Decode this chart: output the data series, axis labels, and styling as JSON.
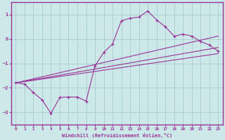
{
  "bg_color": "#cce8e8",
  "grid_color": "#aacccc",
  "line_color": "#993399",
  "spine_color": "#993399",
  "xlabel": "Windchill (Refroidissement éolien,°C)",
  "xlim": [
    -0.5,
    23.5
  ],
  "ylim": [
    -3.5,
    1.5
  ],
  "yticks": [
    -3,
    -2,
    -1,
    0,
    1
  ],
  "xticks": [
    0,
    1,
    2,
    3,
    4,
    5,
    6,
    7,
    8,
    9,
    10,
    11,
    12,
    13,
    14,
    15,
    16,
    17,
    18,
    19,
    20,
    21,
    22,
    23
  ],
  "main_line_x": [
    0,
    1,
    2,
    3,
    4,
    5,
    6,
    7,
    8,
    9,
    10,
    11,
    12,
    13,
    14,
    15,
    16,
    17,
    18,
    19,
    20,
    21,
    22,
    23
  ],
  "main_line_y": [
    -1.8,
    -1.85,
    -2.2,
    -2.5,
    -3.05,
    -2.4,
    -2.38,
    -2.38,
    -2.55,
    -1.1,
    -0.55,
    -0.2,
    0.75,
    0.85,
    0.9,
    1.15,
    0.78,
    0.5,
    0.12,
    0.2,
    0.12,
    -0.1,
    -0.25,
    -0.5
  ],
  "line2_x": [
    0,
    23
  ],
  "line2_y": [
    -1.8,
    -0.35
  ],
  "line3_x": [
    0,
    23
  ],
  "line3_y": [
    -1.8,
    -0.6
  ],
  "line4_x": [
    0,
    23
  ],
  "line4_y": [
    -1.8,
    0.12
  ]
}
